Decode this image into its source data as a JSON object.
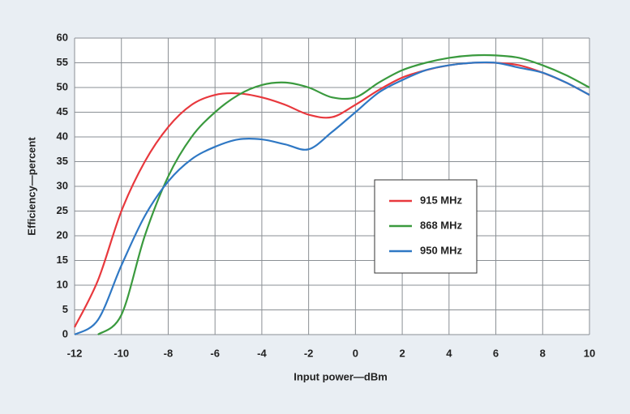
{
  "chart_data": {
    "type": "line",
    "xlabel": "Input power—dBm",
    "ylabel": "Efficiency—percent",
    "x": [
      -12,
      -11,
      -10,
      -9,
      -8,
      -7,
      -6,
      -5,
      -4,
      -3,
      -2,
      -1,
      0,
      1,
      2,
      3,
      4,
      5,
      6,
      7,
      8,
      9,
      10
    ],
    "series": [
      {
        "name": "915 MHz",
        "color": "#e8383d",
        "values": [
          1.5,
          11,
          25,
          35,
          42,
          46.5,
          48.5,
          48.8,
          48,
          46.5,
          44.5,
          44,
          46.5,
          49.5,
          52,
          53.5,
          54.5,
          55,
          55,
          54.5,
          53,
          51,
          48.5
        ]
      },
      {
        "name": "868 MHz",
        "color": "#3a9a3e",
        "values": [
          null,
          0,
          4,
          20,
          32,
          40,
          45,
          48.5,
          50.5,
          51,
          50,
          48,
          48,
          51,
          53.5,
          55,
          56,
          56.5,
          56.5,
          56,
          54.5,
          52.5,
          50
        ]
      },
      {
        "name": "950 MHz",
        "color": "#2f78c4",
        "values": [
          0,
          3,
          14,
          24,
          31,
          35.5,
          38,
          39.5,
          39.5,
          38.5,
          37.5,
          41,
          45,
          49,
          51.5,
          53.5,
          54.5,
          55,
          55,
          54,
          53,
          51,
          48.5
        ]
      }
    ],
    "xlim": [
      -12,
      10
    ],
    "xticks": [
      -12,
      -10,
      -8,
      -6,
      -4,
      -2,
      0,
      2,
      4,
      6,
      8,
      10
    ],
    "ylim": [
      0,
      60
    ],
    "yticks": [
      0,
      5,
      10,
      15,
      20,
      25,
      30,
      35,
      40,
      45,
      50,
      55,
      60
    ],
    "grid": true,
    "legend": "right"
  }
}
